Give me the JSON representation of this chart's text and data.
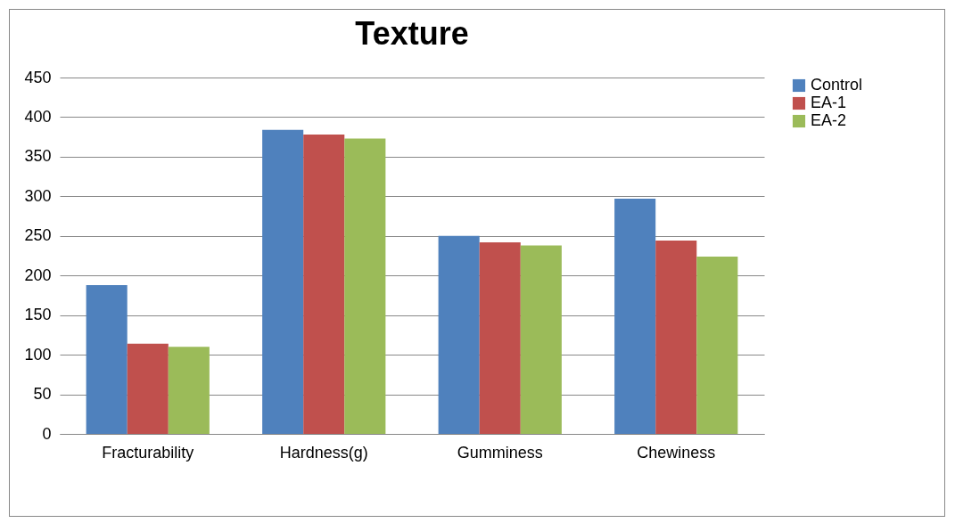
{
  "chart_data": {
    "type": "bar",
    "title": "Texture",
    "categories": [
      "Fracturability",
      "Hardness(g)",
      "Gumminess",
      "Chewiness"
    ],
    "series": [
      {
        "name": "Control",
        "color": "#4f81bd",
        "values": [
          188,
          384,
          250,
          297
        ]
      },
      {
        "name": "EA-1",
        "color": "#c0504d",
        "values": [
          114,
          378,
          242,
          244
        ]
      },
      {
        "name": "EA-2",
        "color": "#9bbb59",
        "values": [
          110,
          373,
          238,
          224
        ]
      }
    ],
    "ylim": [
      0,
      450
    ],
    "yticks": [
      0,
      50,
      100,
      150,
      200,
      250,
      300,
      350,
      400,
      450
    ],
    "grid": "y",
    "legend": "right"
  }
}
